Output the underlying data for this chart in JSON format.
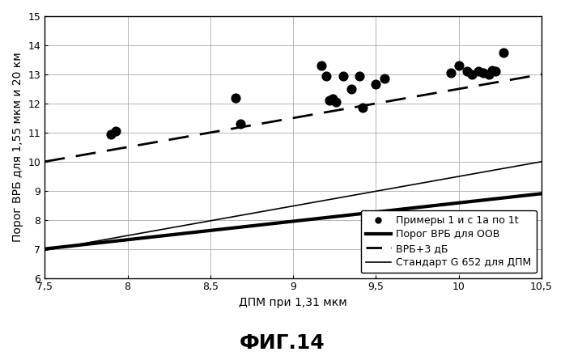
{
  "title": "ФИГ.14",
  "xlabel": "ДПМ при 1,31 мкм",
  "ylabel": "Порог ВРБ для 1,55 мкм и 20 км",
  "xlim": [
    7.5,
    10.5
  ],
  "ylim": [
    6,
    15
  ],
  "xticks": [
    7.5,
    8.0,
    8.5,
    9.0,
    9.5,
    10.0,
    10.5
  ],
  "yticks": [
    6,
    7,
    8,
    9,
    10,
    11,
    12,
    13,
    14,
    15
  ],
  "xtick_labels": [
    "7,5",
    "8",
    "8,5",
    "9",
    "9,5",
    "10",
    "10,5"
  ],
  "ytick_labels": [
    "6",
    "7",
    "8",
    "9",
    "10",
    "11",
    "12",
    "13",
    "14",
    "15"
  ],
  "scatter_x": [
    7.9,
    7.93,
    8.65,
    8.68,
    9.17,
    9.2,
    9.22,
    9.24,
    9.26,
    9.3,
    9.35,
    9.4,
    9.42,
    9.5,
    9.55,
    9.95,
    10.0,
    10.05,
    10.08,
    10.12,
    10.15,
    10.18,
    10.2,
    10.22,
    10.27
  ],
  "scatter_y": [
    10.95,
    11.05,
    12.2,
    11.3,
    13.3,
    12.95,
    12.1,
    12.15,
    12.05,
    12.95,
    12.5,
    12.95,
    11.85,
    12.65,
    12.85,
    13.05,
    13.3,
    13.1,
    13.0,
    13.1,
    13.05,
    13.0,
    13.15,
    13.1,
    13.75
  ],
  "thick_line_x": [
    7.5,
    10.5
  ],
  "thick_line_y": [
    7.0,
    8.9
  ],
  "dashed_line_x": [
    7.5,
    10.5
  ],
  "dashed_line_y": [
    10.0,
    13.0
  ],
  "thin_line_x": [
    7.5,
    10.5
  ],
  "thin_line_y": [
    6.95,
    10.0
  ],
  "legend_labels": [
    "Примеры 1 и с 1а по 1t",
    "Порог ВРБ для ООВ",
    "ВРБ+3 дБ",
    "Стандарт G 652 для ДПМ"
  ],
  "background_color": "#ffffff",
  "grid_color": "#aaaaaa",
  "line_color": "#000000",
  "title_fontsize": 18,
  "axis_label_fontsize": 10,
  "tick_fontsize": 9,
  "legend_fontsize": 9
}
